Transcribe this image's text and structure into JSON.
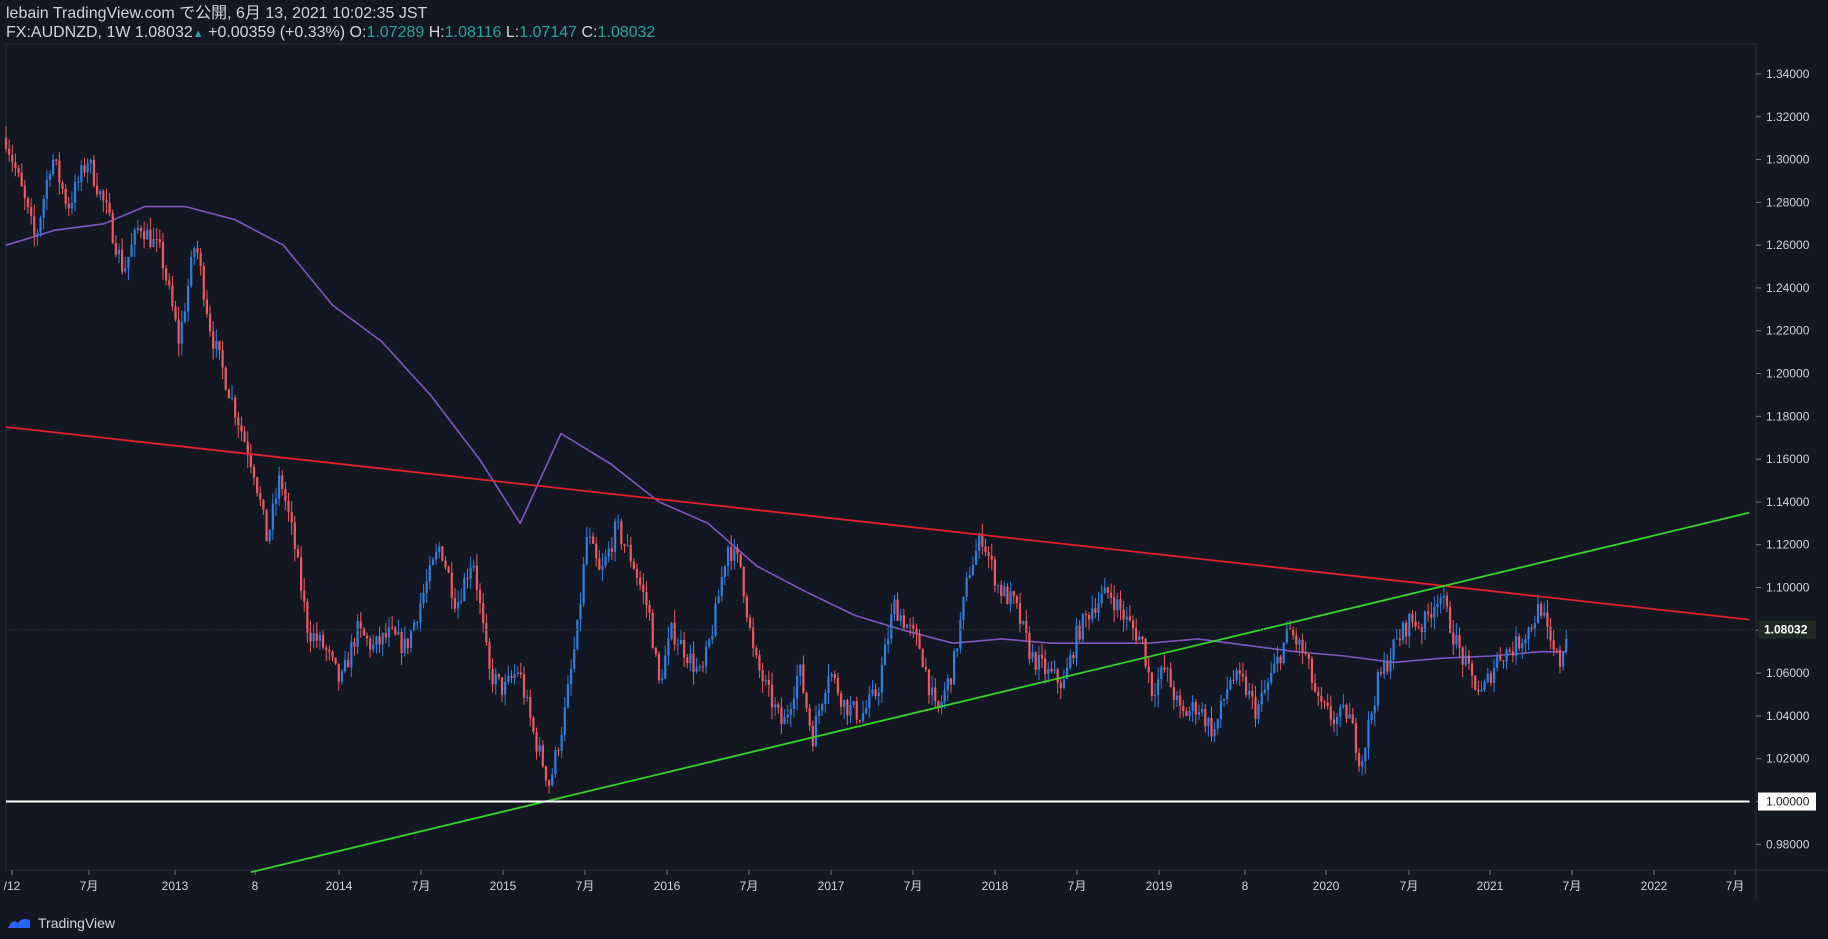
{
  "header": {
    "publisher_line": "lebain TradingView.com で公開, 6月 13, 2021 10:02:35 JST",
    "symbol": "FX:AUDNZD, 1W",
    "last": "1.08032",
    "change": "+0.00359 (+0.33%)",
    "o_label": "O:",
    "o_value": "1.07289",
    "h_label": "H:",
    "h_value": "1.08116",
    "l_label": "L:",
    "l_value": "1.07147",
    "c_label": "C:",
    "c_value": "1.08032"
  },
  "footer": {
    "brand": "TradingView"
  },
  "colors": {
    "background": "#131722",
    "up": "#2f7fe0",
    "down": "#f0585f",
    "ma": "#7e57c2",
    "resistance": "#e5202b",
    "support": "#36d42a",
    "parity": "#ffffff"
  },
  "chart_data": {
    "type": "candlestick",
    "symbol": "FX:AUDNZD",
    "interval": "1W",
    "ylim": [
      0.968,
      1.354
    ],
    "y_ticks": [
      "1.34000",
      "1.32000",
      "1.30000",
      "1.28000",
      "1.26000",
      "1.24000",
      "1.22000",
      "1.20000",
      "1.18000",
      "1.16000",
      "1.14000",
      "1.12000",
      "1.10000",
      "1.08000",
      "1.06000",
      "1.04000",
      "1.02000",
      "1.00000",
      "0.98000"
    ],
    "last_price_label": "1.08032",
    "x_ticks": [
      {
        "t": 2012.5,
        "label": "/12"
      },
      {
        "t": 2012.5,
        "label": "7月"
      },
      {
        "t": 2013.0,
        "label": "2013"
      },
      {
        "t": 2013.5,
        "label": "8"
      },
      {
        "t": 2014.0,
        "label": "2014"
      },
      {
        "t": 2014.5,
        "label": "7月"
      },
      {
        "t": 2015.0,
        "label": "2015"
      },
      {
        "t": 2015.5,
        "label": "7月"
      },
      {
        "t": 2016.0,
        "label": "2016"
      },
      {
        "t": 2016.5,
        "label": "7月"
      },
      {
        "t": 2017.0,
        "label": "2017"
      },
      {
        "t": 2017.5,
        "label": "7月"
      },
      {
        "t": 2018.0,
        "label": "2018"
      },
      {
        "t": 2018.5,
        "label": "7月"
      },
      {
        "t": 2019.0,
        "label": "2019"
      },
      {
        "t": 2019.5,
        "label": "8"
      },
      {
        "t": 2020.0,
        "label": "2020"
      },
      {
        "t": 2020.5,
        "label": "7月"
      },
      {
        "t": 2021.0,
        "label": "2021"
      },
      {
        "t": 2021.5,
        "label": "7月"
      },
      {
        "t": 2022.0,
        "label": "2022"
      },
      {
        "t": 2022.5,
        "label": "7月"
      }
    ],
    "price_path": [
      [
        2012.0,
        1.31
      ],
      [
        2012.08,
        1.29
      ],
      [
        2012.18,
        1.262
      ],
      [
        2012.28,
        1.302
      ],
      [
        2012.38,
        1.278
      ],
      [
        2012.5,
        1.3
      ],
      [
        2012.62,
        1.275
      ],
      [
        2012.72,
        1.248
      ],
      [
        2012.82,
        1.27
      ],
      [
        2012.95,
        1.256
      ],
      [
        2013.06,
        1.215
      ],
      [
        2013.16,
        1.262
      ],
      [
        2013.26,
        1.218
      ],
      [
        2013.4,
        1.184
      ],
      [
        2013.52,
        1.155
      ],
      [
        2013.6,
        1.122
      ],
      [
        2013.68,
        1.152
      ],
      [
        2013.76,
        1.123
      ],
      [
        2013.85,
        1.08
      ],
      [
        2013.95,
        1.072
      ],
      [
        2014.05,
        1.055
      ],
      [
        2014.15,
        1.08
      ],
      [
        2014.25,
        1.072
      ],
      [
        2014.35,
        1.078
      ],
      [
        2014.45,
        1.072
      ],
      [
        2014.56,
        1.098
      ],
      [
        2014.66,
        1.12
      ],
      [
        2014.76,
        1.092
      ],
      [
        2014.86,
        1.115
      ],
      [
        2014.96,
        1.06
      ],
      [
        2015.05,
        1.052
      ],
      [
        2015.14,
        1.062
      ],
      [
        2015.23,
        1.032
      ],
      [
        2015.33,
        1.008
      ],
      [
        2015.42,
        1.04
      ],
      [
        2015.5,
        1.08
      ],
      [
        2015.56,
        1.125
      ],
      [
        2015.64,
        1.105
      ],
      [
        2015.74,
        1.128
      ],
      [
        2015.84,
        1.112
      ],
      [
        2015.94,
        1.088
      ],
      [
        2016.0,
        1.055
      ],
      [
        2016.08,
        1.08
      ],
      [
        2016.18,
        1.068
      ],
      [
        2016.26,
        1.058
      ],
      [
        2016.34,
        1.085
      ],
      [
        2016.42,
        1.12
      ],
      [
        2016.5,
        1.11
      ],
      [
        2016.58,
        1.068
      ],
      [
        2016.66,
        1.052
      ],
      [
        2016.76,
        1.035
      ],
      [
        2016.86,
        1.062
      ],
      [
        2016.94,
        1.03
      ],
      [
        2017.04,
        1.062
      ],
      [
        2017.14,
        1.045
      ],
      [
        2017.24,
        1.04
      ],
      [
        2017.34,
        1.052
      ],
      [
        2017.44,
        1.092
      ],
      [
        2017.52,
        1.082
      ],
      [
        2017.6,
        1.072
      ],
      [
        2017.7,
        1.04
      ],
      [
        2017.8,
        1.062
      ],
      [
        2017.9,
        1.108
      ],
      [
        2017.98,
        1.124
      ],
      [
        2018.08,
        1.1
      ],
      [
        2018.18,
        1.092
      ],
      [
        2018.28,
        1.068
      ],
      [
        2018.38,
        1.06
      ],
      [
        2018.48,
        1.055
      ],
      [
        2018.56,
        1.078
      ],
      [
        2018.66,
        1.092
      ],
      [
        2018.76,
        1.098
      ],
      [
        2018.86,
        1.085
      ],
      [
        2018.96,
        1.075
      ],
      [
        2019.02,
        1.052
      ],
      [
        2019.1,
        1.062
      ],
      [
        2019.2,
        1.04
      ],
      [
        2019.3,
        1.045
      ],
      [
        2019.4,
        1.032
      ],
      [
        2019.5,
        1.058
      ],
      [
        2019.58,
        1.055
      ],
      [
        2019.66,
        1.042
      ],
      [
        2019.76,
        1.06
      ],
      [
        2019.86,
        1.08
      ],
      [
        2019.96,
        1.068
      ],
      [
        2020.04,
        1.045
      ],
      [
        2020.14,
        1.038
      ],
      [
        2020.22,
        1.042
      ],
      [
        2020.3,
        1.018
      ],
      [
        2020.4,
        1.055
      ],
      [
        2020.5,
        1.072
      ],
      [
        2020.6,
        1.085
      ],
      [
        2020.68,
        1.082
      ],
      [
        2020.78,
        1.098
      ],
      [
        2020.88,
        1.075
      ],
      [
        2020.96,
        1.06
      ],
      [
        2021.04,
        1.05
      ],
      [
        2021.14,
        1.068
      ],
      [
        2021.24,
        1.072
      ],
      [
        2021.34,
        1.082
      ],
      [
        2021.4,
        1.092
      ],
      [
        2021.46,
        1.072
      ],
      [
        2021.52,
        1.065
      ],
      [
        2021.56,
        1.08
      ]
    ],
    "moving_average": [
      [
        2012.0,
        1.26
      ],
      [
        2012.3,
        1.267
      ],
      [
        2012.6,
        1.27
      ],
      [
        2012.85,
        1.278
      ],
      [
        2013.1,
        1.278
      ],
      [
        2013.4,
        1.272
      ],
      [
        2013.7,
        1.26
      ],
      [
        2014.0,
        1.232
      ],
      [
        2014.3,
        1.215
      ],
      [
        2014.6,
        1.19
      ],
      [
        2014.9,
        1.16
      ],
      [
        2015.15,
        1.13
      ],
      [
        2015.4,
        1.172
      ],
      [
        2015.7,
        1.158
      ],
      [
        2016.0,
        1.14
      ],
      [
        2016.3,
        1.13
      ],
      [
        2016.6,
        1.11
      ],
      [
        2016.9,
        1.098
      ],
      [
        2017.2,
        1.087
      ],
      [
        2017.5,
        1.08
      ],
      [
        2017.8,
        1.074
      ],
      [
        2018.1,
        1.076
      ],
      [
        2018.4,
        1.074
      ],
      [
        2018.7,
        1.074
      ],
      [
        2019.0,
        1.074
      ],
      [
        2019.3,
        1.076
      ],
      [
        2019.6,
        1.073
      ],
      [
        2019.9,
        1.07
      ],
      [
        2020.2,
        1.068
      ],
      [
        2020.5,
        1.065
      ],
      [
        2020.8,
        1.067
      ],
      [
        2021.1,
        1.068
      ],
      [
        2021.4,
        1.07
      ],
      [
        2021.56,
        1.07
      ]
    ],
    "trendlines": [
      {
        "name": "resistance",
        "from": [
          2012.0,
          1.175
        ],
        "to": [
          2022.68,
          1.085
        ]
      },
      {
        "name": "support",
        "from": [
          2013.5,
          0.967
        ],
        "to": [
          2022.68,
          1.135
        ]
      },
      {
        "name": "parity",
        "from": [
          2012.0,
          1.0
        ],
        "to": [
          2022.68,
          1.0
        ]
      }
    ]
  }
}
